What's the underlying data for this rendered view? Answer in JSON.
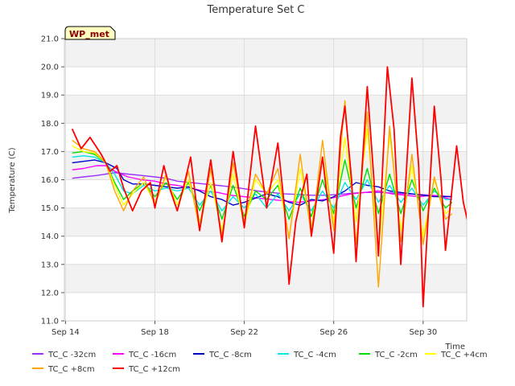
{
  "chart_data": {
    "type": "line",
    "title": "Temperature Set C",
    "xlabel": "Time",
    "ylabel": "Temperature (C)",
    "ylim": [
      11.0,
      21.0
    ],
    "xlim": [
      13.95,
      31.95
    ],
    "x_unit": "day of month (Sep)",
    "yticks": [
      "11.0",
      "12.0",
      "13.0",
      "14.0",
      "15.0",
      "16.0",
      "17.0",
      "18.0",
      "19.0",
      "20.0",
      "21.0"
    ],
    "xticks": [
      {
        "label": "Sep 14",
        "day": 14
      },
      {
        "label": "Sep 18",
        "day": 18
      },
      {
        "label": "Sep 22",
        "day": 22
      },
      {
        "label": "Sep 26",
        "day": 26
      },
      {
        "label": "Sep 30",
        "day": 30
      }
    ],
    "grid": true,
    "legend_position": "bottom",
    "annotation": "WP_met",
    "series": [
      {
        "name": "TC_C -32cm",
        "color": "#9b30ff",
        "points": [
          [
            14.3,
            16.05
          ],
          [
            14.8,
            16.1
          ],
          [
            15.4,
            16.15
          ],
          [
            15.8,
            16.2
          ],
          [
            16.2,
            16.25
          ],
          [
            16.8,
            16.2
          ],
          [
            17.4,
            16.15
          ],
          [
            18.0,
            16.1
          ],
          [
            18.5,
            16.05
          ],
          [
            19.0,
            15.95
          ],
          [
            19.6,
            15.9
          ],
          [
            20.2,
            15.85
          ],
          [
            20.8,
            15.8
          ],
          [
            21.4,
            15.75
          ],
          [
            22.0,
            15.68
          ],
          [
            22.6,
            15.6
          ],
          [
            23.2,
            15.55
          ],
          [
            23.8,
            15.5
          ],
          [
            24.4,
            15.48
          ],
          [
            25.0,
            15.45
          ],
          [
            25.6,
            15.45
          ],
          [
            26.2,
            15.48
          ],
          [
            26.8,
            15.52
          ],
          [
            27.4,
            15.55
          ],
          [
            28.0,
            15.55
          ],
          [
            28.6,
            15.53
          ],
          [
            29.2,
            15.5
          ],
          [
            29.8,
            15.48
          ],
          [
            30.4,
            15.45
          ],
          [
            31.0,
            15.42
          ],
          [
            31.3,
            15.4
          ]
        ]
      },
      {
        "name": "TC_C -16cm",
        "color": "#ff00ff",
        "points": [
          [
            14.3,
            16.35
          ],
          [
            14.8,
            16.4
          ],
          [
            15.4,
            16.5
          ],
          [
            15.8,
            16.5
          ],
          [
            16.2,
            16.3
          ],
          [
            16.8,
            16.1
          ],
          [
            17.4,
            16.0
          ],
          [
            18.0,
            15.95
          ],
          [
            18.5,
            15.85
          ],
          [
            19.0,
            15.8
          ],
          [
            19.6,
            15.7
          ],
          [
            20.2,
            15.6
          ],
          [
            20.8,
            15.55
          ],
          [
            21.4,
            15.45
          ],
          [
            22.0,
            15.4
          ],
          [
            22.6,
            15.35
          ],
          [
            23.2,
            15.3
          ],
          [
            23.8,
            15.25
          ],
          [
            24.4,
            15.2
          ],
          [
            25.0,
            15.25
          ],
          [
            25.6,
            15.3
          ],
          [
            26.2,
            15.4
          ],
          [
            26.8,
            15.5
          ],
          [
            27.4,
            15.55
          ],
          [
            28.0,
            15.6
          ],
          [
            28.6,
            15.5
          ],
          [
            29.2,
            15.45
          ],
          [
            29.8,
            15.4
          ],
          [
            30.4,
            15.45
          ],
          [
            31.0,
            15.35
          ],
          [
            31.3,
            15.3
          ]
        ]
      },
      {
        "name": "TC_C -8cm",
        "color": "#0000cc",
        "points": [
          [
            14.3,
            16.6
          ],
          [
            14.8,
            16.65
          ],
          [
            15.3,
            16.7
          ],
          [
            15.8,
            16.6
          ],
          [
            16.3,
            16.4
          ],
          [
            16.6,
            16.0
          ],
          [
            17.0,
            15.85
          ],
          [
            17.5,
            15.85
          ],
          [
            18.0,
            15.8
          ],
          [
            18.5,
            15.75
          ],
          [
            19.0,
            15.7
          ],
          [
            19.5,
            15.75
          ],
          [
            20.0,
            15.6
          ],
          [
            20.5,
            15.4
          ],
          [
            21.0,
            15.3
          ],
          [
            21.5,
            15.1
          ],
          [
            22.0,
            15.2
          ],
          [
            22.5,
            15.35
          ],
          [
            23.0,
            15.5
          ],
          [
            23.5,
            15.4
          ],
          [
            24.0,
            15.2
          ],
          [
            24.5,
            15.1
          ],
          [
            25.0,
            15.3
          ],
          [
            25.5,
            15.25
          ],
          [
            26.0,
            15.4
          ],
          [
            26.5,
            15.6
          ],
          [
            27.0,
            15.9
          ],
          [
            27.5,
            15.8
          ],
          [
            28.0,
            15.75
          ],
          [
            28.5,
            15.6
          ],
          [
            29.0,
            15.55
          ],
          [
            29.5,
            15.5
          ],
          [
            30.0,
            15.45
          ],
          [
            30.5,
            15.4
          ],
          [
            31.0,
            15.4
          ],
          [
            31.3,
            15.4
          ]
        ]
      },
      {
        "name": "TC_C -4cm",
        "color": "#00e5e5",
        "points": [
          [
            14.3,
            16.8
          ],
          [
            14.8,
            16.85
          ],
          [
            15.3,
            16.8
          ],
          [
            15.8,
            16.6
          ],
          [
            16.2,
            16.2
          ],
          [
            16.6,
            15.6
          ],
          [
            17.0,
            15.5
          ],
          [
            17.5,
            15.8
          ],
          [
            18.0,
            15.6
          ],
          [
            18.5,
            15.7
          ],
          [
            19.0,
            15.6
          ],
          [
            19.5,
            15.7
          ],
          [
            20.0,
            15.1
          ],
          [
            20.5,
            15.6
          ],
          [
            21.0,
            14.9
          ],
          [
            21.5,
            15.4
          ],
          [
            22.0,
            15.0
          ],
          [
            22.5,
            15.5
          ],
          [
            23.0,
            15.0
          ],
          [
            23.5,
            15.5
          ],
          [
            24.0,
            14.9
          ],
          [
            24.5,
            15.5
          ],
          [
            25.0,
            14.9
          ],
          [
            25.5,
            15.6
          ],
          [
            26.0,
            15.0
          ],
          [
            26.5,
            15.9
          ],
          [
            27.0,
            15.3
          ],
          [
            27.5,
            16.0
          ],
          [
            28.0,
            15.2
          ],
          [
            28.5,
            15.8
          ],
          [
            29.0,
            15.2
          ],
          [
            29.5,
            15.7
          ],
          [
            30.0,
            15.1
          ],
          [
            30.5,
            15.6
          ],
          [
            31.0,
            15.3
          ],
          [
            31.3,
            15.3
          ]
        ]
      },
      {
        "name": "TC_C -2cm",
        "color": "#00dd00",
        "points": [
          [
            14.3,
            16.95
          ],
          [
            14.8,
            17.0
          ],
          [
            15.3,
            16.9
          ],
          [
            15.8,
            16.6
          ],
          [
            16.2,
            15.9
          ],
          [
            16.6,
            15.3
          ],
          [
            17.0,
            15.6
          ],
          [
            17.5,
            15.9
          ],
          [
            18.0,
            15.4
          ],
          [
            18.5,
            15.9
          ],
          [
            19.0,
            15.3
          ],
          [
            19.5,
            15.9
          ],
          [
            20.0,
            14.9
          ],
          [
            20.5,
            15.8
          ],
          [
            21.0,
            14.6
          ],
          [
            21.5,
            15.8
          ],
          [
            22.0,
            14.7
          ],
          [
            22.5,
            15.6
          ],
          [
            23.0,
            15.3
          ],
          [
            23.5,
            15.8
          ],
          [
            24.0,
            14.6
          ],
          [
            24.5,
            15.7
          ],
          [
            25.0,
            14.7
          ],
          [
            25.5,
            16.0
          ],
          [
            26.0,
            14.8
          ],
          [
            26.5,
            16.7
          ],
          [
            27.0,
            15.0
          ],
          [
            27.5,
            16.4
          ],
          [
            28.0,
            14.8
          ],
          [
            28.5,
            16.2
          ],
          [
            29.0,
            14.8
          ],
          [
            29.5,
            16.0
          ],
          [
            30.0,
            14.9
          ],
          [
            30.5,
            15.7
          ],
          [
            31.0,
            15.0
          ],
          [
            31.3,
            15.2
          ]
        ]
      },
      {
        "name": "TC_C +4cm",
        "color": "#ffff00",
        "points": [
          [
            14.3,
            17.2
          ],
          [
            14.8,
            17.0
          ],
          [
            15.3,
            16.95
          ],
          [
            15.8,
            16.6
          ],
          [
            16.2,
            15.8
          ],
          [
            16.6,
            15.1
          ],
          [
            17.0,
            15.5
          ],
          [
            17.5,
            15.9
          ],
          [
            18.0,
            15.2
          ],
          [
            18.5,
            16.1
          ],
          [
            19.0,
            15.1
          ],
          [
            19.5,
            16.0
          ],
          [
            20.0,
            14.5
          ],
          [
            20.5,
            15.9
          ],
          [
            21.0,
            14.2
          ],
          [
            21.5,
            16.2
          ],
          [
            22.0,
            14.4
          ],
          [
            22.5,
            16.0
          ],
          [
            23.0,
            15.5
          ],
          [
            23.5,
            16.0
          ],
          [
            24.0,
            14.0
          ],
          [
            24.5,
            16.4
          ],
          [
            25.0,
            14.3
          ],
          [
            25.5,
            16.8
          ],
          [
            26.0,
            14.5
          ],
          [
            26.5,
            17.5
          ],
          [
            27.0,
            14.5
          ],
          [
            27.5,
            17.8
          ],
          [
            28.0,
            13.5
          ],
          [
            28.5,
            17.6
          ],
          [
            29.0,
            14.2
          ],
          [
            29.5,
            16.5
          ],
          [
            30.0,
            14.0
          ],
          [
            30.5,
            16.0
          ],
          [
            31.0,
            14.8
          ],
          [
            31.3,
            15.0
          ]
        ]
      },
      {
        "name": "TC_C +8cm",
        "color": "#ffa500",
        "points": [
          [
            14.3,
            17.4
          ],
          [
            14.8,
            17.1
          ],
          [
            15.3,
            17.0
          ],
          [
            15.8,
            16.6
          ],
          [
            16.2,
            15.6
          ],
          [
            16.6,
            14.9
          ],
          [
            17.0,
            15.6
          ],
          [
            17.5,
            16.1
          ],
          [
            18.0,
            15.1
          ],
          [
            18.5,
            16.2
          ],
          [
            19.0,
            14.9
          ],
          [
            19.5,
            16.3
          ],
          [
            20.0,
            14.2
          ],
          [
            20.5,
            16.4
          ],
          [
            21.0,
            14.0
          ],
          [
            21.5,
            16.6
          ],
          [
            22.0,
            14.5
          ],
          [
            22.5,
            16.2
          ],
          [
            23.0,
            15.5
          ],
          [
            23.5,
            16.4
          ],
          [
            24.0,
            13.9
          ],
          [
            24.5,
            16.9
          ],
          [
            25.0,
            14.0
          ],
          [
            25.5,
            17.4
          ],
          [
            26.0,
            14.2
          ],
          [
            26.5,
            18.8
          ],
          [
            27.0,
            13.7
          ],
          [
            27.5,
            18.4
          ],
          [
            28.0,
            12.2
          ],
          [
            28.5,
            17.9
          ],
          [
            29.0,
            13.8
          ],
          [
            29.5,
            16.9
          ],
          [
            30.0,
            13.7
          ],
          [
            30.5,
            16.1
          ],
          [
            31.0,
            14.6
          ],
          [
            31.3,
            14.8
          ]
        ]
      },
      {
        "name": "TC_C +12cm",
        "color": "#ff0000",
        "points": [
          [
            14.3,
            17.8
          ],
          [
            14.7,
            17.1
          ],
          [
            15.1,
            17.5
          ],
          [
            15.6,
            16.9
          ],
          [
            16.0,
            16.3
          ],
          [
            16.3,
            16.5
          ],
          [
            16.6,
            15.7
          ],
          [
            17.0,
            14.9
          ],
          [
            17.4,
            15.6
          ],
          [
            17.8,
            15.9
          ],
          [
            18.0,
            15.0
          ],
          [
            18.4,
            16.5
          ],
          [
            18.7,
            15.6
          ],
          [
            19.0,
            14.9
          ],
          [
            19.3,
            15.8
          ],
          [
            19.6,
            16.8
          ],
          [
            20.0,
            14.2
          ],
          [
            20.5,
            16.7
          ],
          [
            21.0,
            13.8
          ],
          [
            21.5,
            17.0
          ],
          [
            22.0,
            14.3
          ],
          [
            22.5,
            17.9
          ],
          [
            23.0,
            15.0
          ],
          [
            23.5,
            17.3
          ],
          [
            23.8,
            15.0
          ],
          [
            24.0,
            12.3
          ],
          [
            24.3,
            14.5
          ],
          [
            24.6,
            15.6
          ],
          [
            24.8,
            16.2
          ],
          [
            25.0,
            14.0
          ],
          [
            25.5,
            16.8
          ],
          [
            26.0,
            13.4
          ],
          [
            26.3,
            17.5
          ],
          [
            26.5,
            18.6
          ],
          [
            26.8,
            16.0
          ],
          [
            27.0,
            13.1
          ],
          [
            27.5,
            19.3
          ],
          [
            27.8,
            16.0
          ],
          [
            28.0,
            13.3
          ],
          [
            28.4,
            20.0
          ],
          [
            28.7,
            17.8
          ],
          [
            29.0,
            13.0
          ],
          [
            29.5,
            19.6
          ],
          [
            29.8,
            16.5
          ],
          [
            30.0,
            11.5
          ],
          [
            30.5,
            18.6
          ],
          [
            30.8,
            16.0
          ],
          [
            31.0,
            13.5
          ],
          [
            31.5,
            17.2
          ],
          [
            31.8,
            15.2
          ],
          [
            32.0,
            14.5
          ]
        ]
      }
    ]
  }
}
